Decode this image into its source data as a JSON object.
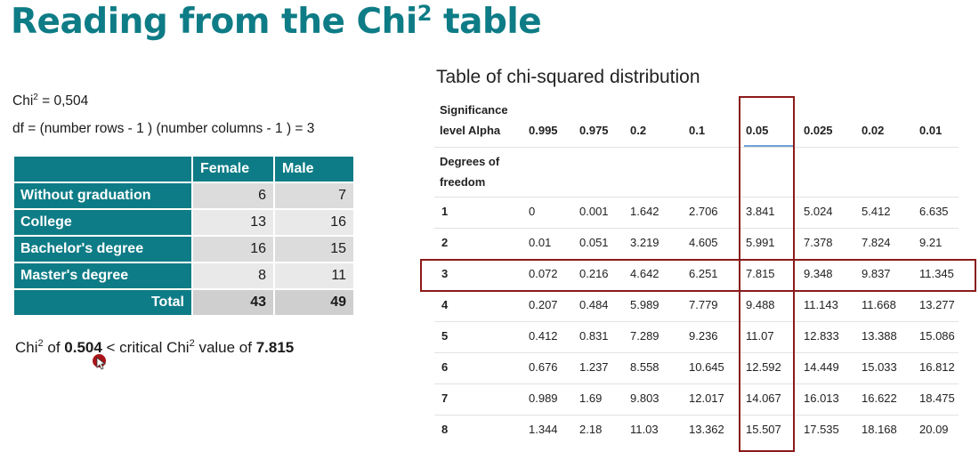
{
  "slide": {
    "title_main": "Reading from the Chi",
    "title_sup": "2",
    "title_end": " table"
  },
  "left": {
    "chi_label": "Chi",
    "chi_sup": "2",
    "chi_value": " = 0,504",
    "df_line": "df = (number rows - 1 ) (number columns - 1 ) = 3"
  },
  "contingency": {
    "columns": [
      "",
      "Female",
      "Male"
    ],
    "rows": [
      {
        "label": "Without graduation",
        "female": "6",
        "male": "7"
      },
      {
        "label": "College",
        "female": "13",
        "male": "16"
      },
      {
        "label": "Bachelor's degree",
        "female": "16",
        "male": "15"
      },
      {
        "label": "Master's degree",
        "female": "8",
        "male": "11"
      }
    ],
    "total": {
      "label": "Total",
      "female": "43",
      "male": "49"
    }
  },
  "conclusion": {
    "p1": "Chi",
    "sup1": "2",
    "p2": " of ",
    "v1": "0.504",
    "p3": " < critical Chi",
    "sup2": "2",
    "p4": " value of ",
    "v2": "7.815"
  },
  "dist_table": {
    "title": "Table of chi-squared distribution",
    "alpha_label_1": "Significance",
    "alpha_label_2": "level Alpha",
    "df_label_1": "Degrees of",
    "df_label_2": "freedom",
    "alphas": [
      "0.995",
      "0.975",
      "0.2",
      "0.1",
      "0.05",
      "0.025",
      "0.02",
      "0.01"
    ],
    "rows": [
      {
        "df": "1",
        "values": [
          "0",
          "0.001",
          "1.642",
          "2.706",
          "3.841",
          "5.024",
          "5.412",
          "6.635"
        ]
      },
      {
        "df": "2",
        "values": [
          "0.01",
          "0.051",
          "3.219",
          "4.605",
          "5.991",
          "7.378",
          "7.824",
          "9.21"
        ]
      },
      {
        "df": "3",
        "values": [
          "0.072",
          "0.216",
          "4.642",
          "6.251",
          "7.815",
          "9.348",
          "9.837",
          "11.345"
        ]
      },
      {
        "df": "4",
        "values": [
          "0.207",
          "0.484",
          "5.989",
          "7.779",
          "9.488",
          "11.143",
          "11.668",
          "13.277"
        ]
      },
      {
        "df": "5",
        "values": [
          "0.412",
          "0.831",
          "7.289",
          "9.236",
          "11.07",
          "12.833",
          "13.388",
          "15.086"
        ]
      },
      {
        "df": "6",
        "values": [
          "0.676",
          "1.237",
          "8.558",
          "10.645",
          "12.592",
          "14.449",
          "15.033",
          "16.812"
        ]
      },
      {
        "df": "7",
        "values": [
          "0.989",
          "1.69",
          "9.803",
          "12.017",
          "14.067",
          "16.013",
          "16.622",
          "18.475"
        ]
      },
      {
        "df": "8",
        "values": [
          "1.344",
          "2.18",
          "11.03",
          "13.362",
          "15.507",
          "17.535",
          "18.168",
          "20.09"
        ]
      }
    ],
    "highlight_alpha": "0.05",
    "highlight_df": "3",
    "highlight_color": "#8b1a1a"
  },
  "colors": {
    "teal": "#0e7c86",
    "cursor": "#a8141a"
  }
}
